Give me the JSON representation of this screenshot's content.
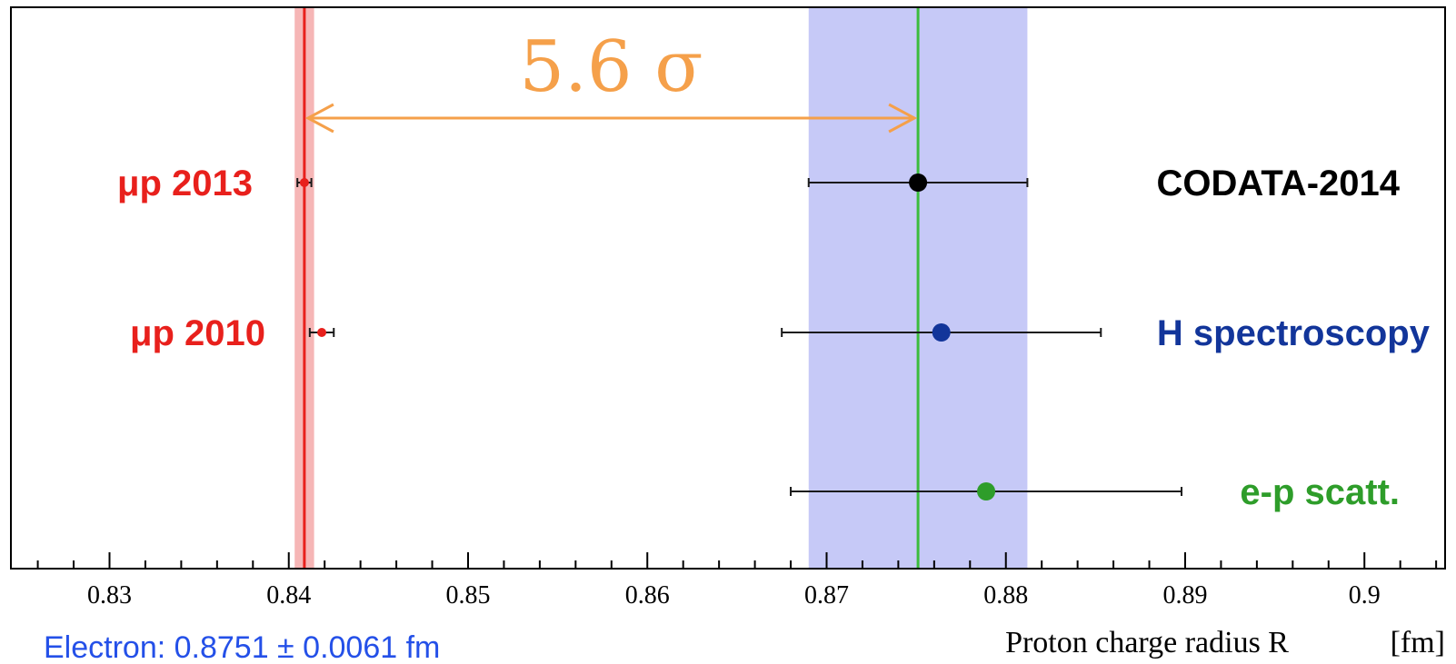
{
  "chart_data": {
    "type": "scatter",
    "xlabel": "Proton charge radius R",
    "xlabel_unit": "[fm]",
    "xlim": [
      0.8245,
      0.9045
    ],
    "x_ticks": [
      "0.83",
      "0.84",
      "0.85",
      "0.86",
      "0.87",
      "0.88",
      "0.89",
      "0.9"
    ],
    "x_tick_values": [
      0.83,
      0.84,
      0.85,
      0.86,
      0.87,
      0.88,
      0.89,
      0.9
    ],
    "grid": false,
    "points": [
      {
        "name": "μp 2013",
        "x": 0.84087,
        "err": 0.00039,
        "color": "#e8201c"
      },
      {
        "name": "μp 2010",
        "x": 0.84184,
        "err": 0.00067,
        "color": "#e8201c"
      },
      {
        "name": "CODATA-2014",
        "x": 0.8751,
        "err": 0.0061,
        "color": "#000000"
      },
      {
        "name": "H spectroscopy",
        "x": 0.8764,
        "err": 0.0089,
        "color": "#12359a"
      },
      {
        "name": "e-p scatt.",
        "x": 0.8789,
        "err": 0.0109,
        "color": "#2e9d2a"
      }
    ],
    "bands": [
      {
        "x_center": 0.8751,
        "half_width": 0.0061,
        "fill": "#c6c9f7",
        "line": "#3cbc3c"
      },
      {
        "x_center": 0.84087,
        "half_width": 0.00039,
        "fill": "#f6b6b6",
        "line": "#e8201c"
      }
    ],
    "annotation": {
      "text": "5.6 σ",
      "x_from": 0.84087,
      "x_to": 0.8751,
      "color": "#f5a04a"
    },
    "note": "Electron: 0.8751  ± 0.0061  fm"
  }
}
